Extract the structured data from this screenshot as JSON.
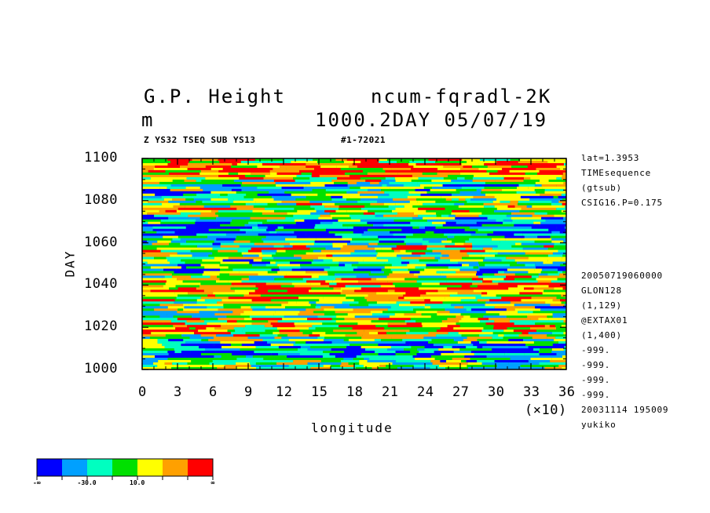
{
  "header": {
    "title_left": "G.P. Height",
    "title_right": "ncum-fqradl-2K",
    "units": "m",
    "subtitle_right": "1000.2DAY 05/07/19",
    "info_left": "Z YS32 TSEQ SUB YS13",
    "info_mid": "#1-72021"
  },
  "side_info": {
    "lines_top": [
      "lat=1.3953",
      "TIMEsequence",
      "(gtsub)",
      "CSIG16.P=0.175"
    ],
    "lines_bottom": [
      "20050719060000",
      "GLON128",
      "(1,129)",
      "@EXTAX01",
      "(1,400)",
      "-999.",
      "-999.",
      "-999.",
      "-999.",
      "20031114 195009",
      "yukiko"
    ]
  },
  "chart_data": {
    "type": "heatmap",
    "xlabel": "longitude",
    "ylabel": "DAY",
    "x_ticks": [
      "0",
      "3",
      "6",
      "9",
      "12",
      "15",
      "18",
      "21",
      "24",
      "27",
      "30",
      "33",
      "36"
    ],
    "x_multiplier": "(×10)",
    "y_ticks": [
      "1000",
      "1020",
      "1040",
      "1060",
      "1080",
      "1100"
    ],
    "xlim": [
      0,
      36
    ],
    "ylim": [
      1000,
      1100
    ],
    "colorbar": {
      "colors": [
        "#0000ff",
        "#00a0ff",
        "#00ffc0",
        "#00e000",
        "#ffff00",
        "#ffa000",
        "#ff0000"
      ],
      "labels": [
        "-∞",
        "-30.0",
        "10.0",
        "∞"
      ]
    }
  }
}
